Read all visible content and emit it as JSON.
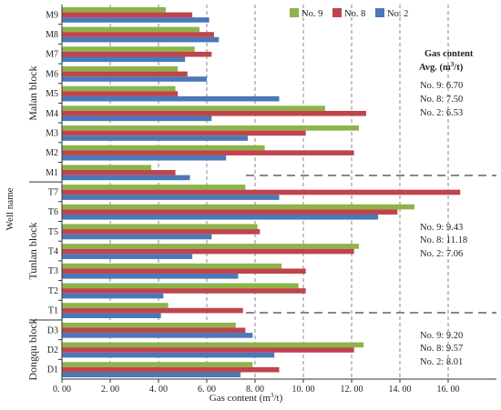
{
  "chart_data": {
    "type": "bar",
    "orientation": "horizontal",
    "categories": [
      "M9",
      "M8",
      "M7",
      "M6",
      "M5",
      "M4",
      "M3",
      "M2",
      "M1",
      "T7",
      "T6",
      "T5",
      "T4",
      "T3",
      "T2",
      "T1",
      "D3",
      "D2",
      "D1"
    ],
    "series": [
      {
        "name": "No. 9",
        "color": "#8db34a",
        "values": [
          4.3,
          5.7,
          5.5,
          4.8,
          4.7,
          10.9,
          12.3,
          8.4,
          3.7,
          7.6,
          14.6,
          8.1,
          12.3,
          9.1,
          9.8,
          4.4,
          7.2,
          12.5,
          7.9
        ]
      },
      {
        "name": "No. 8",
        "color": "#c0444c",
        "values": [
          5.4,
          6.3,
          6.2,
          5.2,
          4.8,
          12.6,
          10.1,
          12.1,
          4.7,
          16.5,
          13.9,
          8.2,
          12.1,
          10.1,
          10.1,
          7.5,
          7.6,
          12.1,
          9.0
        ]
      },
      {
        "name": "No. 2",
        "color": "#4a78b8",
        "values": [
          6.1,
          6.5,
          5.1,
          6.0,
          9.0,
          6.2,
          7.7,
          6.8,
          5.3,
          9.0,
          13.1,
          6.2,
          5.4,
          7.3,
          4.2,
          4.1,
          7.9,
          8.8,
          7.4
        ]
      }
    ],
    "groups": [
      {
        "label": "Malan block",
        "categories": [
          "M9",
          "M8",
          "M7",
          "M6",
          "M5",
          "M4",
          "M3",
          "M2",
          "M1"
        ]
      },
      {
        "label": "Tunlan block",
        "categories": [
          "T7",
          "T6",
          "T5",
          "T4",
          "T3",
          "T2",
          "T1"
        ]
      },
      {
        "label": "Dongqu block",
        "categories": [
          "D3",
          "D2",
          "D1"
        ]
      }
    ],
    "xlabel_main": "Gas content (m",
    "xlabel_sup": "3",
    "xlabel_end": "/t)",
    "ylabel": "Well name",
    "xlim": [
      0,
      18
    ],
    "xticks": [
      0,
      2,
      4,
      6,
      8,
      10,
      12,
      14,
      16
    ],
    "xtick_labels": [
      "0. 00",
      "2. 00",
      "4. 00",
      "6. 00",
      "8. 00",
      "10. 00",
      "12. 00",
      "14. 00",
      "16. 00"
    ],
    "grid": "vertical dashed",
    "legend_position": "top-right",
    "annotations": {
      "header1": "Gas content",
      "header2_main": "Avg. (m",
      "header2_sup": "3",
      "header2_end": "/t)",
      "malan": [
        "No. 9:  6.70",
        "No. 8:  7.50",
        "No. 2:  6.53"
      ],
      "tunlan": [
        "No. 9:  9.43",
        "No. 8:  11.18",
        "No. 2:  7.06"
      ],
      "dongqu": [
        "No. 9:  9.20",
        "No. 8:  9.57",
        "No. 2:  8.01"
      ]
    }
  }
}
